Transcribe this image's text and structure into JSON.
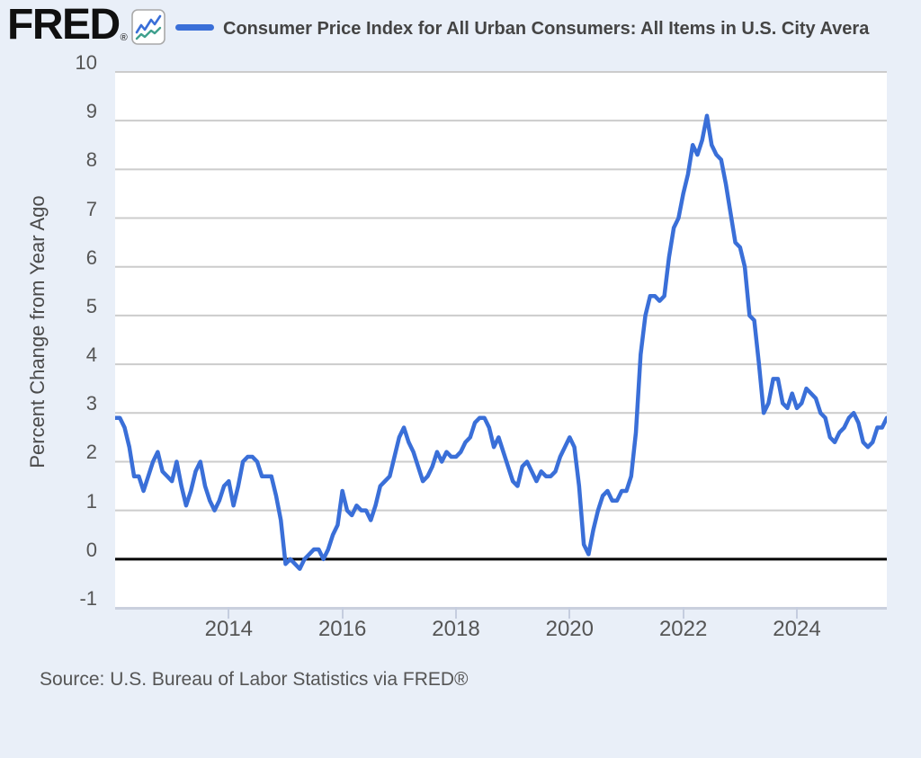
{
  "header": {
    "logo_text": "FRED",
    "registered_mark": "®",
    "legend_marker_color": "#3a6fd8"
  },
  "source": {
    "text": "Source: U.S. Bureau of Labor Statistics via FRED®"
  },
  "colors": {
    "background": "#e9eff8",
    "plot_background": "#ffffff",
    "gridline": "#cccccc",
    "zero_line": "#000000",
    "series_blue": "#3a6fd8",
    "icon_teal": "#3fa08e",
    "axis_text": "#555555",
    "title_text": "#444444"
  },
  "chart_data": {
    "type": "line",
    "title": "Consumer Price Index for All Urban Consumers: All Items in U.S. City Avera",
    "ylabel": "Percent Change from Year Ago",
    "xlabel": "",
    "x_start_month": "2012-01",
    "x_end_month": "2025-08",
    "frequency": "monthly",
    "ylim": [
      -1,
      10
    ],
    "grid": true,
    "legend_position": "top",
    "zero_line_value": 0,
    "y_ticks": [
      10,
      9,
      8,
      7,
      6,
      5,
      4,
      3,
      2,
      1,
      0,
      -1
    ],
    "x_ticks": [
      {
        "label": "2014",
        "month_index": 24
      },
      {
        "label": "2016",
        "month_index": 48
      },
      {
        "label": "2018",
        "month_index": 72
      },
      {
        "label": "2020",
        "month_index": 96
      },
      {
        "label": "2022",
        "month_index": 120
      },
      {
        "label": "2024",
        "month_index": 144
      }
    ],
    "series": [
      {
        "name": "Consumer Price Index for All Urban Consumers: All Items in U.S. City Avera",
        "color": "#3a6fd8",
        "values": [
          2.9,
          2.9,
          2.7,
          2.3,
          1.7,
          1.7,
          1.4,
          1.7,
          2.0,
          2.2,
          1.8,
          1.7,
          1.6,
          2.0,
          1.5,
          1.1,
          1.4,
          1.8,
          2.0,
          1.5,
          1.2,
          1.0,
          1.2,
          1.5,
          1.6,
          1.1,
          1.5,
          2.0,
          2.1,
          2.1,
          2.0,
          1.7,
          1.7,
          1.7,
          1.3,
          0.8,
          -0.1,
          0.0,
          -0.1,
          -0.2,
          0.0,
          0.1,
          0.2,
          0.2,
          0.0,
          0.2,
          0.5,
          0.7,
          1.4,
          1.0,
          0.9,
          1.1,
          1.0,
          1.0,
          0.8,
          1.1,
          1.5,
          1.6,
          1.7,
          2.1,
          2.5,
          2.7,
          2.4,
          2.2,
          1.9,
          1.6,
          1.7,
          1.9,
          2.2,
          2.0,
          2.2,
          2.1,
          2.1,
          2.2,
          2.4,
          2.5,
          2.8,
          2.9,
          2.9,
          2.7,
          2.3,
          2.5,
          2.2,
          1.9,
          1.6,
          1.5,
          1.9,
          2.0,
          1.8,
          1.6,
          1.8,
          1.7,
          1.7,
          1.8,
          2.1,
          2.3,
          2.5,
          2.3,
          1.5,
          0.3,
          0.1,
          0.6,
          1.0,
          1.3,
          1.4,
          1.2,
          1.2,
          1.4,
          1.4,
          1.7,
          2.6,
          4.2,
          5.0,
          5.4,
          5.4,
          5.3,
          5.4,
          6.2,
          6.8,
          7.0,
          7.5,
          7.9,
          8.5,
          8.3,
          8.6,
          9.1,
          8.5,
          8.3,
          8.2,
          7.7,
          7.1,
          6.5,
          6.4,
          6.0,
          5.0,
          4.9,
          4.0,
          3.0,
          3.2,
          3.7,
          3.7,
          3.2,
          3.1,
          3.4,
          3.1,
          3.2,
          3.5,
          3.4,
          3.3,
          3.0,
          2.9,
          2.5,
          2.4,
          2.6,
          2.7,
          2.9,
          3.0,
          2.8,
          2.4,
          2.3,
          2.4,
          2.7,
          2.7,
          2.9
        ]
      }
    ]
  }
}
